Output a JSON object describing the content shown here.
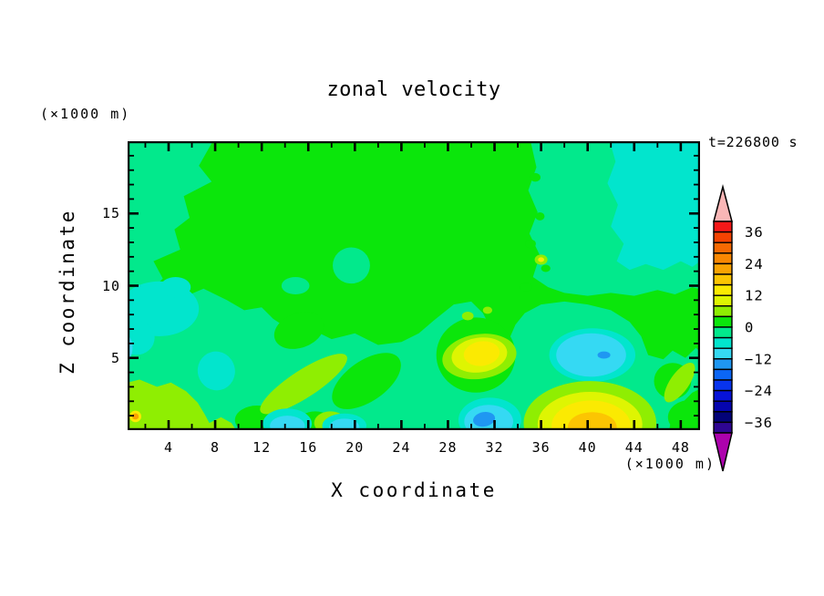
{
  "title": "zonal velocity",
  "time_annotation": "t=226800 s",
  "axes": {
    "x": {
      "label": "X coordinate",
      "unit_note": "(×1000 m)",
      "range": [
        0,
        50
      ],
      "major_ticks": [
        4,
        8,
        12,
        16,
        20,
        24,
        28,
        32,
        36,
        40,
        44,
        48
      ],
      "minor_ticks": [
        2,
        6,
        10,
        14,
        18,
        22,
        26,
        30,
        34,
        38,
        42,
        46
      ]
    },
    "z": {
      "label": "Z coordinate",
      "unit_note": "(×1000 m)",
      "range": [
        0,
        20
      ],
      "major_ticks": [
        5,
        10,
        15
      ],
      "minor_ticks": [
        1,
        2,
        3,
        4,
        6,
        7,
        8,
        9,
        11,
        12,
        13,
        14,
        16,
        17,
        18,
        19
      ]
    }
  },
  "colorbar": {
    "over_color": "#f9b6b6",
    "under_color": "#ad02ad",
    "cell_value_step": 4,
    "cells": [
      {
        "max": 40,
        "min": 36,
        "color": "#f51818"
      },
      {
        "max": 36,
        "min": 32,
        "color": "#f44302"
      },
      {
        "max": 32,
        "min": 28,
        "color": "#f76902"
      },
      {
        "max": 28,
        "min": 24,
        "color": "#f98802"
      },
      {
        "max": 24,
        "min": 20,
        "color": "#faa302"
      },
      {
        "max": 20,
        "min": 16,
        "color": "#fcc502"
      },
      {
        "max": 16,
        "min": 12,
        "color": "#fbea02"
      },
      {
        "max": 12,
        "min": 8,
        "color": "#def502"
      },
      {
        "max": 8,
        "min": 4,
        "color": "#8fee02"
      },
      {
        "max": 4,
        "min": 0,
        "color": "#0be60b"
      },
      {
        "max": 0,
        "min": -4,
        "color": "#02e98c"
      },
      {
        "max": -4,
        "min": -8,
        "color": "#02e5cd"
      },
      {
        "max": -8,
        "min": -12,
        "color": "#35d9f3"
      },
      {
        "max": -12,
        "min": -16,
        "color": "#1f97f2"
      },
      {
        "max": -16,
        "min": -20,
        "color": "#0b66f5"
      },
      {
        "max": -20,
        "min": -24,
        "color": "#0834ee"
      },
      {
        "max": -24,
        "min": -28,
        "color": "#0713d8"
      },
      {
        "max": -28,
        "min": -32,
        "color": "#0505ae"
      },
      {
        "max": -32,
        "min": -36,
        "color": "#030378"
      },
      {
        "max": -36,
        "min": -40,
        "color": "#2e0692"
      }
    ],
    "tick_labels": [
      {
        "value": 36,
        "text": "36"
      },
      {
        "value": 24,
        "text": "24"
      },
      {
        "value": 12,
        "text": "12"
      },
      {
        "value": 0,
        "text": "0"
      },
      {
        "value": -12,
        "text": "−12"
      },
      {
        "value": -24,
        "text": "−24"
      },
      {
        "value": -36,
        "text": "−36"
      }
    ]
  },
  "chart_data": {
    "type": "filled_contour",
    "title": "zonal velocity",
    "xlabel": "X coordinate",
    "ylabel": "Z coordinate",
    "x_unit": "(×1000 m)",
    "z_unit": "(×1000 m)",
    "time": "t=226800 s",
    "x_range": [
      0,
      50
    ],
    "z_range": [
      0,
      20
    ],
    "value_range": [
      -40,
      40
    ],
    "contour_interval": 4,
    "colorbar_tick_values": [
      36,
      24,
      12,
      0,
      -12,
      -24,
      -36
    ],
    "field_summary": [
      {
        "feature": "weak positive background 0 to 4",
        "region": "most of domain"
      },
      {
        "feature": "weak negative band -4 to 0",
        "region": "left edge, lower half, upper right quadrant"
      },
      {
        "feature": "negative patch -8 to -4",
        "x": 8.1,
        "z": 4.1
      },
      {
        "feature": "negative patches -8 to -4",
        "x": 3,
        "z": 8.5
      },
      {
        "feature": "cyan minimum, core -16 to -12",
        "x": 41.4,
        "z": 5.2
      },
      {
        "feature": "near-surface minimum, core -16 to -12",
        "x": 31.1,
        "z": 0.8
      },
      {
        "feature": "near-surface maximum, core 16 to 20",
        "x": 40.3,
        "z": 0.3
      },
      {
        "feature": "elevated maximum, core 12 to 16",
        "x": 30.9,
        "z": 5.3
      },
      {
        "feature": "tilted positive streak 4 to 8",
        "from_xz": [
          12.5,
          5.5
        ],
        "to_xz": [
          19,
          1
        ]
      },
      {
        "feature": "positive blob 4 to 8 with 20-24 speck",
        "x": 3,
        "z": 1.5
      },
      {
        "feature": "small positive speck 12 to 16",
        "x": 36,
        "z": 11.8
      }
    ]
  },
  "field": {
    "background_band": 0,
    "blobs": [
      {
        "band": -4,
        "type": "poly",
        "pts": [
          [
            0,
            20
          ],
          [
            7.8,
            20
          ],
          [
            6.6,
            18.3
          ],
          [
            7.7,
            17.2
          ],
          [
            5.3,
            16.2
          ],
          [
            5.8,
            14.7
          ],
          [
            4.5,
            13.9
          ],
          [
            5.0,
            12.5
          ],
          [
            2.7,
            11.7
          ],
          [
            3.5,
            10.5
          ],
          [
            2.3,
            9.5
          ],
          [
            3.2,
            8.6
          ],
          [
            1.5,
            8.0
          ],
          [
            0,
            8.2
          ]
        ]
      },
      {
        "band": -4,
        "type": "poly",
        "pts": [
          [
            0,
            9.0
          ],
          [
            2.5,
            9.6
          ],
          [
            5,
            9.1
          ],
          [
            7,
            9.8
          ],
          [
            9,
            9.0
          ],
          [
            10.5,
            8.3
          ],
          [
            12,
            8.5
          ],
          [
            13,
            7.7
          ],
          [
            14.5,
            6.9
          ],
          [
            16,
            7.1
          ],
          [
            18,
            6.3
          ],
          [
            20,
            6.7
          ],
          [
            22,
            5.9
          ],
          [
            24,
            6.1
          ],
          [
            25.5,
            6.7
          ],
          [
            26.8,
            7.6
          ],
          [
            28.5,
            8.7
          ],
          [
            30,
            8.9
          ],
          [
            31,
            8.1
          ],
          [
            31.8,
            6.9
          ],
          [
            32.5,
            5.4
          ],
          [
            33.2,
            6.2
          ],
          [
            33.8,
            7.3
          ],
          [
            34.6,
            8.1
          ],
          [
            36,
            8.7
          ],
          [
            38,
            8.9
          ],
          [
            40,
            8.7
          ],
          [
            42,
            8.3
          ],
          [
            43.6,
            7.5
          ],
          [
            44.6,
            6.5
          ],
          [
            45.2,
            5.2
          ],
          [
            46.5,
            4.9
          ],
          [
            47.3,
            5.5
          ],
          [
            48.4,
            5.0
          ],
          [
            49.3,
            5.7
          ],
          [
            50,
            5.2
          ],
          [
            50,
            3.0
          ],
          [
            49.0,
            2.6
          ],
          [
            48.0,
            1.8
          ],
          [
            47.2,
            0.8
          ],
          [
            47.0,
            0
          ],
          [
            0,
            0
          ]
        ]
      },
      {
        "band": -4,
        "type": "poly",
        "pts": [
          [
            35.1,
            20
          ],
          [
            35.6,
            18.2
          ],
          [
            34.9,
            16.6
          ],
          [
            35.7,
            15.1
          ],
          [
            35.0,
            13.6
          ],
          [
            35.9,
            12.1
          ],
          [
            35.3,
            10.6
          ],
          [
            36.6,
            9.9
          ],
          [
            38,
            9.5
          ],
          [
            40,
            9.3
          ],
          [
            42,
            9.5
          ],
          [
            44,
            9.3
          ],
          [
            46,
            9.7
          ],
          [
            47.5,
            9.4
          ],
          [
            49,
            9.9
          ],
          [
            50,
            9.7
          ],
          [
            50,
            20
          ]
        ]
      },
      {
        "band": -8,
        "type": "poly",
        "pts": [
          [
            41.9,
            20
          ],
          [
            42.4,
            18.6
          ],
          [
            41.7,
            17.1
          ],
          [
            42.6,
            15.6
          ],
          [
            42.0,
            14.1
          ],
          [
            43.1,
            12.9
          ],
          [
            42.5,
            11.7
          ],
          [
            43.6,
            11.1
          ],
          [
            45,
            11.5
          ],
          [
            46.5,
            11.1
          ],
          [
            48,
            11.7
          ],
          [
            49,
            11.3
          ],
          [
            50,
            11.9
          ],
          [
            50,
            20
          ]
        ]
      },
      {
        "band": -8,
        "type": "ellipse",
        "x": 3.2,
        "z": 8.4,
        "rx": 3.4,
        "rz": 1.9
      },
      {
        "band": -8,
        "type": "ellipse",
        "x": 1.2,
        "z": 6.4,
        "rx": 1.6,
        "rz": 1.2
      },
      {
        "band": -8,
        "type": "ellipse",
        "x": 4.6,
        "z": 9.9,
        "rx": 1.3,
        "rz": 0.7
      },
      {
        "band": -12,
        "type": "ellipse",
        "x": 0.3,
        "z": 5.7,
        "rx": 0.6,
        "rz": 0.9
      },
      {
        "band": -8,
        "type": "ellipse",
        "x": 8.1,
        "z": 4.1,
        "rx": 1.6,
        "rz": 1.35,
        "rot": -15
      },
      {
        "band": -4,
        "type": "ellipse",
        "x": 19.7,
        "z": 11.4,
        "rx": 1.6,
        "rz": 1.25
      },
      {
        "band": -4,
        "type": "ellipse",
        "x": 14.9,
        "z": 10.0,
        "rx": 1.2,
        "rz": 0.6
      },
      {
        "band": 0,
        "type": "ellipse",
        "x": 15.2,
        "z": 6.9,
        "rx": 2.2,
        "rz": 1.2,
        "rot": -20
      },
      {
        "band": 0,
        "type": "ellipse",
        "x": 21.0,
        "z": 3.4,
        "rx": 3.4,
        "rz": 1.4,
        "rot": -35
      },
      {
        "band": 0,
        "type": "ellipse",
        "x": 30.4,
        "z": 5.2,
        "rx": 3.4,
        "rz": 2.6
      },
      {
        "band": 0,
        "type": "ellipse",
        "x": 11.6,
        "z": 0.7,
        "rx": 1.9,
        "rz": 1.0
      },
      {
        "band": 0,
        "type": "ellipse",
        "x": 16.6,
        "z": 0.5,
        "rx": 1.5,
        "rz": 0.8
      },
      {
        "band": 0,
        "type": "ellipse",
        "x": 47.3,
        "z": 3.4,
        "rx": 1.6,
        "rz": 1.25
      },
      {
        "band": 0,
        "type": "ellipse",
        "x": 48.9,
        "z": 0.9,
        "rx": 2.0,
        "rz": 1.2
      },
      {
        "band": 0,
        "type": "ellipse",
        "x": 35.5,
        "z": 17.5,
        "rx": 0.45,
        "rz": 0.3
      },
      {
        "band": 0,
        "type": "ellipse",
        "x": 35.9,
        "z": 14.8,
        "rx": 0.4,
        "rz": 0.28
      },
      {
        "band": 0,
        "type": "ellipse",
        "x": 35.1,
        "z": 12.9,
        "rx": 0.45,
        "rz": 0.3
      },
      {
        "band": 0,
        "type": "ellipse",
        "x": 36.4,
        "z": 11.2,
        "rx": 0.4,
        "rz": 0.25
      },
      {
        "band": 0,
        "type": "ellipse",
        "x": 34.7,
        "z": 9.9,
        "rx": 0.5,
        "rz": 0.3
      },
      {
        "band": 4,
        "type": "poly",
        "pts": [
          [
            0,
            3.2
          ],
          [
            1.5,
            3.5
          ],
          [
            3,
            3.0
          ],
          [
            4.2,
            3.3
          ],
          [
            5.5,
            2.7
          ],
          [
            6.5,
            1.9
          ],
          [
            7.1,
            1.1
          ],
          [
            7.5,
            0.5
          ],
          [
            8.5,
            0.9
          ],
          [
            9.4,
            0.5
          ],
          [
            9.8,
            0
          ],
          [
            0,
            0
          ]
        ]
      },
      {
        "band": 12,
        "type": "ellipse",
        "x": 1.15,
        "z": 0.95,
        "rx": 0.5,
        "rz": 0.4
      },
      {
        "band": 20,
        "type": "ellipse",
        "x": 1.15,
        "z": 0.95,
        "rx": 0.28,
        "rz": 0.22
      },
      {
        "band": 4,
        "type": "ellipse",
        "x": 15.6,
        "z": 3.2,
        "rx": 4.4,
        "rz": 0.95,
        "rot": -33
      },
      {
        "band": 4,
        "type": "ellipse",
        "x": 17.9,
        "z": 0.5,
        "rx": 1.4,
        "rz": 0.8
      },
      {
        "band": -8,
        "type": "ellipse",
        "x": 14.2,
        "z": 0.45,
        "rx": 2.1,
        "rz": 1.05
      },
      {
        "band": -12,
        "type": "ellipse",
        "x": 14.2,
        "z": 0.3,
        "rx": 1.5,
        "rz": 0.7
      },
      {
        "band": -8,
        "type": "ellipse",
        "x": 19.1,
        "z": 0.3,
        "rx": 1.9,
        "rz": 0.85
      },
      {
        "band": -12,
        "type": "ellipse",
        "x": 19.1,
        "z": 0.2,
        "rx": 1.3,
        "rz": 0.6
      },
      {
        "band": 4,
        "type": "ellipse",
        "x": 30.7,
        "z": 5.1,
        "rx": 3.2,
        "rz": 1.55,
        "rot": -8
      },
      {
        "band": 8,
        "type": "ellipse",
        "x": 30.7,
        "z": 5.2,
        "rx": 2.4,
        "rz": 1.2,
        "rot": -8
      },
      {
        "band": 12,
        "type": "ellipse",
        "x": 30.9,
        "z": 5.3,
        "rx": 1.55,
        "rz": 0.85,
        "rot": -8
      },
      {
        "band": 4,
        "type": "ellipse",
        "x": 29.7,
        "z": 7.9,
        "rx": 0.5,
        "rz": 0.3
      },
      {
        "band": 4,
        "type": "ellipse",
        "x": 31.4,
        "z": 8.3,
        "rx": 0.4,
        "rz": 0.25
      },
      {
        "band": -8,
        "type": "ellipse",
        "x": 31.6,
        "z": 0.7,
        "rx": 2.7,
        "rz": 1.55
      },
      {
        "band": -12,
        "type": "ellipse",
        "x": 31.5,
        "z": 0.6,
        "rx": 2.1,
        "rz": 1.15
      },
      {
        "band": -16,
        "type": "ellipse",
        "x": 31.1,
        "z": 0.75,
        "rx": 0.95,
        "rz": 0.5,
        "rot": -10
      },
      {
        "band": -8,
        "type": "ellipse",
        "x": 40.4,
        "z": 5.2,
        "rx": 3.7,
        "rz": 1.85
      },
      {
        "band": -12,
        "type": "ellipse",
        "x": 40.3,
        "z": 5.2,
        "rx": 3.0,
        "rz": 1.5
      },
      {
        "band": -16,
        "type": "ellipse",
        "x": 41.4,
        "z": 5.2,
        "rx": 0.55,
        "rz": 0.25
      },
      {
        "band": 4,
        "type": "ellipse",
        "x": 40.2,
        "z": 0.5,
        "rx": 5.7,
        "rz": 2.9
      },
      {
        "band": 8,
        "type": "ellipse",
        "x": 40.2,
        "z": 0.4,
        "rx": 4.5,
        "rz": 2.25
      },
      {
        "band": 12,
        "type": "ellipse",
        "x": 40.3,
        "z": 0.3,
        "rx": 3.4,
        "rz": 1.75
      },
      {
        "band": 16,
        "type": "ellipse",
        "x": 40.4,
        "z": 0.2,
        "rx": 2.1,
        "rz": 1.05
      },
      {
        "band": 4,
        "type": "ellipse",
        "x": 47.9,
        "z": 3.3,
        "rx": 2.0,
        "rz": 0.65,
        "rot": -55
      },
      {
        "band": 4,
        "type": "ellipse",
        "x": 36.0,
        "z": 11.8,
        "rx": 0.55,
        "rz": 0.35
      },
      {
        "band": 12,
        "type": "ellipse",
        "x": 36.0,
        "z": 11.8,
        "rx": 0.26,
        "rz": 0.16
      }
    ]
  }
}
